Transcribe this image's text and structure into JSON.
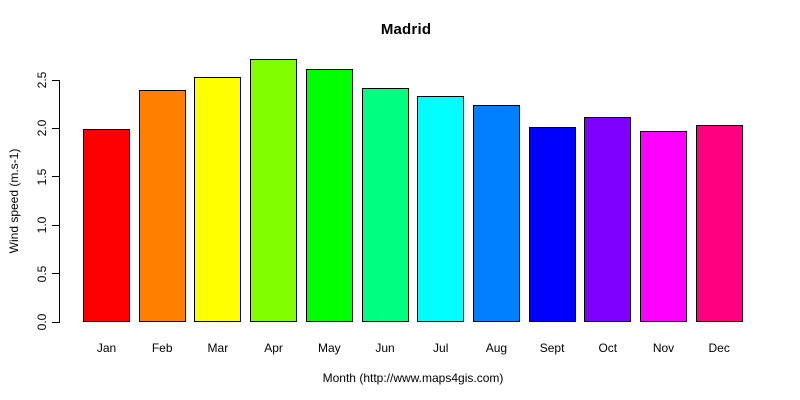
{
  "chart_data": {
    "type": "bar",
    "title": "Madrid",
    "xlabel": "Month (http://www.maps4gis.com)",
    "ylabel": "Wind speed (m.s-1)",
    "categories": [
      "Jan",
      "Feb",
      "Mar",
      "Apr",
      "May",
      "Jun",
      "Jul",
      "Aug",
      "Sept",
      "Oct",
      "Nov",
      "Dec"
    ],
    "values": [
      1.99,
      2.4,
      2.53,
      2.72,
      2.61,
      2.42,
      2.33,
      2.24,
      2.01,
      2.12,
      1.97,
      2.04
    ],
    "bar_colors": [
      "#FF0000",
      "#FF8000",
      "#FFFF00",
      "#80FF00",
      "#00FF00",
      "#00FF80",
      "#00FFFF",
      "#0080FF",
      "#0000FF",
      "#8000FF",
      "#FF00FF",
      "#FF0080"
    ],
    "bar_border_color": "#000000",
    "y_tick_labels": [
      "0.0",
      "0.5",
      "1.0",
      "1.5",
      "2.0",
      "2.5"
    ],
    "y_ticks": [
      0.0,
      0.5,
      1.0,
      1.5,
      2.0,
      2.5
    ],
    "ylim": [
      0,
      2.5
    ],
    "grid": false,
    "legend": "none",
    "background_color": "#FFFFFF",
    "text_color": "#000000"
  }
}
